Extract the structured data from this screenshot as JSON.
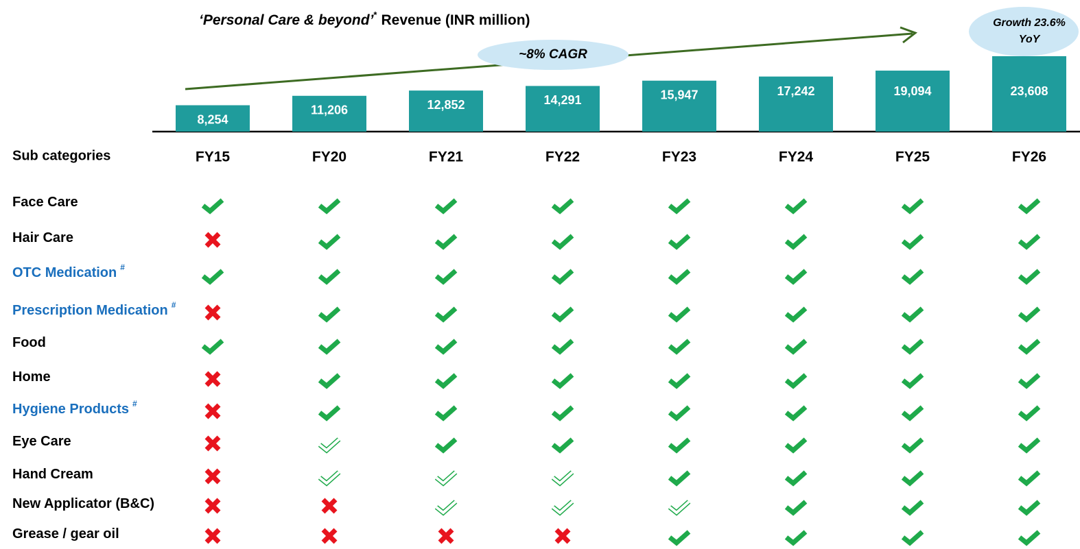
{
  "chart_data": {
    "type": "bar",
    "title": {
      "emphasis": "‘Personal Care & beyond’",
      "mark": "*",
      "rest": "Revenue (INR million)"
    },
    "categories": [
      "FY15",
      "FY20",
      "FY21",
      "FY22",
      "FY23",
      "FY24",
      "FY25",
      "FY26"
    ],
    "values": [
      8254,
      11206,
      12852,
      14291,
      15947,
      17242,
      19094,
      23608
    ],
    "value_labels": [
      "8,254",
      "11,206",
      "12,852",
      "14,291",
      "15,947",
      "17,242",
      "19,094",
      "23,608"
    ],
    "color": "#1f9c9c",
    "annotations": {
      "trend": "~8% CAGR",
      "growth": "Growth 23.6% YoY"
    }
  },
  "table": {
    "header": "Sub categories",
    "rows": [
      {
        "label": "Face Care",
        "color": "#000000",
        "status": [
          "full",
          "full",
          "full",
          "full",
          "full",
          "full",
          "full",
          "full"
        ]
      },
      {
        "label": "Hair Care",
        "color": "#000000",
        "status": [
          "no",
          "full",
          "full",
          "full",
          "full",
          "full",
          "full",
          "full"
        ]
      },
      {
        "label": "OTC Medication",
        "marker": "#",
        "color": "#1a6fbd",
        "status": [
          "full",
          "full",
          "full",
          "full",
          "full",
          "full",
          "full",
          "full"
        ]
      },
      {
        "label": "Prescription Medication",
        "marker": "#",
        "color": "#1a6fbd",
        "status": [
          "no",
          "full",
          "full",
          "full",
          "full",
          "full",
          "full",
          "full"
        ]
      },
      {
        "label": "Food",
        "color": "#000000",
        "status": [
          "full",
          "full",
          "full",
          "full",
          "full",
          "full",
          "full",
          "full"
        ]
      },
      {
        "label": "Home",
        "color": "#000000",
        "status": [
          "no",
          "full",
          "full",
          "full",
          "full",
          "full",
          "full",
          "full"
        ]
      },
      {
        "label": "Hygiene Products",
        "marker": "#",
        "color": "#1a6fbd",
        "status": [
          "no",
          "full",
          "full",
          "full",
          "full",
          "full",
          "full",
          "full"
        ]
      },
      {
        "label": "Eye Care",
        "color": "#000000",
        "status": [
          "no",
          "open",
          "full",
          "full",
          "full",
          "full",
          "full",
          "full"
        ]
      },
      {
        "label": "Hand Cream",
        "color": "#000000",
        "status": [
          "no",
          "open",
          "open",
          "open",
          "full",
          "full",
          "full",
          "full"
        ]
      },
      {
        "label": "New Applicator (B&C)",
        "color": "#000000",
        "status": [
          "no",
          "no",
          "open",
          "open",
          "open",
          "full",
          "full",
          "full"
        ]
      },
      {
        "label": "Grease / gear oil",
        "color": "#000000",
        "status": [
          "no",
          "no",
          "no",
          "no",
          "full",
          "full",
          "full",
          "full"
        ]
      }
    ]
  }
}
